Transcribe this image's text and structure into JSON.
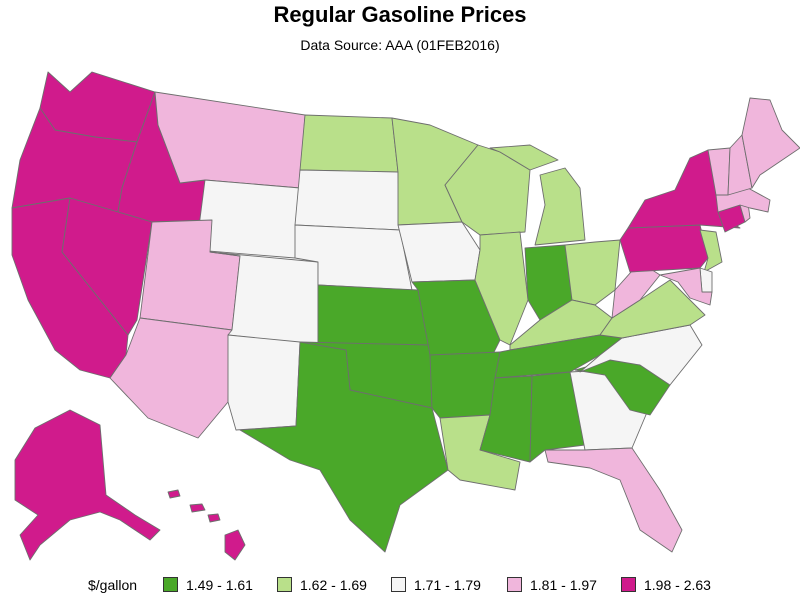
{
  "title": "Regular Gasoline Prices",
  "subtitle": "Data Source: AAA (01FEB2016)",
  "legend": {
    "label": "$/gallon",
    "items": [
      {
        "range": "1.49 - 1.61",
        "color": "#4aa829"
      },
      {
        "range": "1.62 - 1.69",
        "color": "#b9e08a"
      },
      {
        "range": "1.71 - 1.79",
        "color": "#f5f5f5"
      },
      {
        "range": "1.81 - 1.97",
        "color": "#f0b6dc"
      },
      {
        "range": "1.98 - 2.63",
        "color": "#d01b8c"
      }
    ]
  },
  "states": [
    {
      "id": "WA",
      "class": 4
    },
    {
      "id": "OR",
      "class": 4
    },
    {
      "id": "CA",
      "class": 4
    },
    {
      "id": "ID",
      "class": 4
    },
    {
      "id": "NV",
      "class": 4
    },
    {
      "id": "AK",
      "class": 4
    },
    {
      "id": "HI",
      "class": 4
    },
    {
      "id": "NY",
      "class": 4
    },
    {
      "id": "PA",
      "class": 4
    },
    {
      "id": "CT",
      "class": 4
    },
    {
      "id": "MT",
      "class": 3
    },
    {
      "id": "UT",
      "class": 3
    },
    {
      "id": "AZ",
      "class": 3
    },
    {
      "id": "FL",
      "class": 3
    },
    {
      "id": "ME",
      "class": 3
    },
    {
      "id": "NH",
      "class": 3
    },
    {
      "id": "VT",
      "class": 3
    },
    {
      "id": "MA",
      "class": 3
    },
    {
      "id": "RI",
      "class": 3
    },
    {
      "id": "WV",
      "class": 3
    },
    {
      "id": "MD",
      "class": 3
    },
    {
      "id": "WY",
      "class": 2
    },
    {
      "id": "SD",
      "class": 2
    },
    {
      "id": "NE",
      "class": 2
    },
    {
      "id": "CO",
      "class": 2
    },
    {
      "id": "NM",
      "class": 2
    },
    {
      "id": "IA",
      "class": 2
    },
    {
      "id": "GA",
      "class": 2
    },
    {
      "id": "NC",
      "class": 2
    },
    {
      "id": "DE",
      "class": 2
    },
    {
      "id": "ND",
      "class": 1
    },
    {
      "id": "MN",
      "class": 1
    },
    {
      "id": "WI",
      "class": 1
    },
    {
      "id": "MI",
      "class": 1
    },
    {
      "id": "IL",
      "class": 1
    },
    {
      "id": "OH",
      "class": 1
    },
    {
      "id": "KY",
      "class": 1
    },
    {
      "id": "VA",
      "class": 1
    },
    {
      "id": "LA",
      "class": 1
    },
    {
      "id": "NJ",
      "class": 1
    },
    {
      "id": "KS",
      "class": 0
    },
    {
      "id": "OK",
      "class": 0
    },
    {
      "id": "TX",
      "class": 0
    },
    {
      "id": "MO",
      "class": 0
    },
    {
      "id": "AR",
      "class": 0
    },
    {
      "id": "MS",
      "class": 0
    },
    {
      "id": "AL",
      "class": 0
    },
    {
      "id": "TN",
      "class": 0
    },
    {
      "id": "IN",
      "class": 0
    },
    {
      "id": "SC",
      "class": 0
    }
  ]
}
